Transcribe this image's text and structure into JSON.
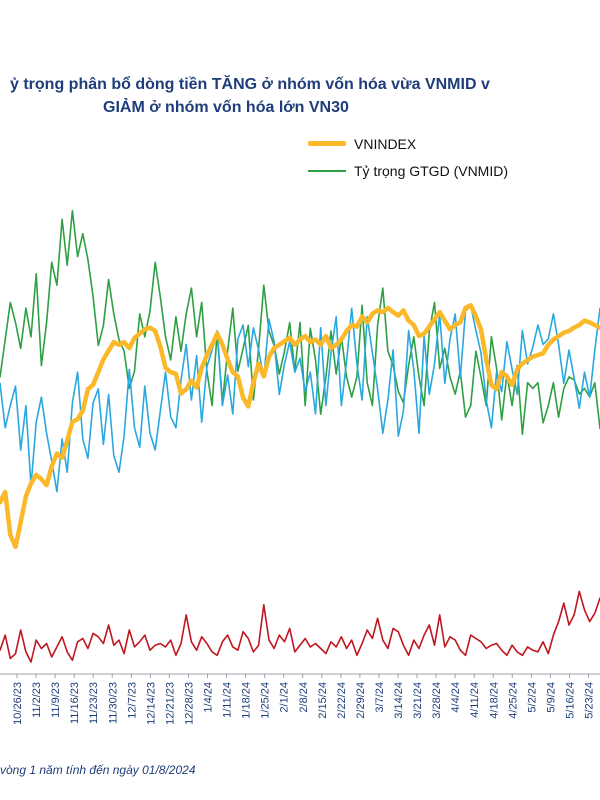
{
  "title": {
    "line1": "ỷ trọng phân bổ dòng tiền TĂNG ở nhóm vốn hóa vừa VNMID v",
    "line2": "GIẢM ở nhóm vốn hóa lớn VN30"
  },
  "legend": [
    {
      "name": "VNINDEX",
      "color": "#fbb829"
    },
    {
      "name": "Tỷ trọng GTGD (VNMID)",
      "color": "#2ea043"
    }
  ],
  "footnote": "vòng 1 năm tính đến ngày 01/8/2024",
  "chart_data": {
    "type": "line",
    "x_ticks": [
      "10/26/23",
      "11/2/23",
      "11/9/23",
      "11/16/23",
      "11/23/23",
      "11/30/23",
      "12/7/23",
      "12/14/23",
      "12/21/23",
      "12/28/23",
      "1/4/24",
      "1/11/24",
      "1/18/24",
      "1/25/24",
      "2/1/24",
      "2/8/24",
      "2/15/24",
      "2/22/24",
      "2/29/24",
      "3/7/24",
      "3/14/24",
      "3/21/24",
      "3/28/24",
      "4/4/24",
      "4/11/24",
      "4/18/24",
      "4/25/24",
      "5/2/24",
      "5/9/24",
      "5/16/24",
      "5/23/24"
    ],
    "series": [
      {
        "name": "VNINDEX",
        "color": "#fbb829",
        "values": [
          1078,
          1090,
          1040,
          1026,
          1055,
          1085,
          1100,
          1110,
          1105,
          1098,
          1120,
          1135,
          1130,
          1150,
          1172,
          1175,
          1185,
          1210,
          1215,
          1230,
          1245,
          1255,
          1265,
          1262,
          1265,
          1258,
          1270,
          1275,
          1280,
          1282,
          1278,
          1260,
          1235,
          1230,
          1228,
          1205,
          1210,
          1220,
          1212,
          1235,
          1250,
          1262,
          1275,
          1262,
          1245,
          1230,
          1225,
          1200,
          1190,
          1218,
          1240,
          1225,
          1248,
          1258,
          1262,
          1266,
          1270,
          1262,
          1268,
          1272,
          1265,
          1268,
          1262,
          1272,
          1258,
          1262,
          1268,
          1278,
          1285,
          1283,
          1295,
          1288,
          1298,
          1302,
          1300,
          1305,
          1300,
          1296,
          1302,
          1290,
          1285,
          1272,
          1275,
          1283,
          1292,
          1300,
          1290,
          1280,
          1285,
          1288,
          1305,
          1308,
          1295,
          1280,
          1245,
          1215,
          1210,
          1230,
          1225,
          1215,
          1233,
          1240,
          1244,
          1248,
          1250,
          1252,
          1262,
          1268,
          1272,
          1276,
          1278,
          1282,
          1285,
          1290,
          1288,
          1285,
          1282
        ]
      },
      {
        "name": "Tỷ trọng GTGD (VNMID)",
        "color": "#2ea043",
        "values": [
          16.2,
          17.5,
          18.8,
          18.1,
          17.2,
          18.6,
          17.6,
          19.8,
          16.6,
          18.1,
          20.2,
          19.4,
          21.7,
          20.1,
          22.0,
          20.4,
          21.2,
          20.3,
          19.0,
          17.3,
          18.0,
          19.6,
          18.4,
          17.5,
          17.1,
          15.8,
          16.4,
          18.4,
          17.6,
          18.5,
          20.2,
          19.0,
          17.6,
          16.8,
          18.3,
          17.1,
          18.4,
          19.3,
          17.6,
          18.8,
          16.4,
          15.2,
          17.8,
          15.3,
          17.1,
          18.6,
          16.4,
          17.2,
          18.0,
          15.4,
          17.2,
          19.4,
          17.8,
          17.3,
          16.3,
          17.1,
          18.1,
          16.4,
          18.1,
          15.2,
          17.9,
          16.8,
          14.9,
          16.2,
          17.8,
          16.3,
          17.6,
          16.2,
          15.5,
          16.2,
          18.7,
          16.0,
          15.2,
          18.0,
          19.3,
          17.1,
          16.6,
          15.7,
          15.3,
          16.6,
          17.6,
          16.2,
          15.2,
          17.8,
          18.8,
          16.5,
          17.2,
          16.2,
          15.6,
          16.4,
          14.8,
          15.2,
          17.1,
          16.2,
          15.2,
          17.6,
          16.5,
          14.7,
          16.3,
          15.2,
          16.6,
          14.2,
          16.0,
          15.8,
          16.0,
          14.6,
          15.2,
          16.0,
          14.8,
          15.8,
          16.2,
          16.1,
          15.6,
          15.8,
          15.5,
          16.0,
          14.4
        ]
      },
      {
        "color": "#29a8e0",
        "values": [
          14.2,
          12.6,
          13.4,
          14.1,
          11.8,
          13.4,
          10.5,
          12.8,
          13.7,
          12.4,
          11.4,
          10.3,
          12.2,
          11.0,
          13.5,
          14.6,
          12.2,
          11.5,
          13.5,
          14.0,
          12.0,
          13.8,
          11.6,
          11.0,
          12.3,
          14.7,
          12.6,
          11.9,
          14.1,
          12.4,
          11.8,
          13.2,
          14.6,
          13.0,
          12.6,
          14.3,
          15.6,
          13.6,
          15.2,
          12.8,
          14.8,
          15.4,
          16.0,
          13.4,
          14.5,
          13.1,
          15.8,
          16.3,
          14.8,
          16.2,
          15.4,
          14.4,
          16.5,
          15.7,
          13.8,
          14.9,
          15.7,
          14.6,
          15.1,
          13.9,
          14.6,
          13.1,
          16.2,
          13.4,
          15.3,
          16.6,
          13.4,
          15.0,
          16.9,
          14.9,
          13.6,
          16.6,
          15.3,
          14.0,
          12.4,
          13.6,
          15.4,
          12.3,
          13.2,
          16.1,
          14.7,
          12.4,
          15.9,
          13.8,
          14.9,
          16.7,
          14.2,
          15.8,
          16.7,
          14.4,
          16.8,
          17.0,
          16.1,
          15.3,
          13.6,
          12.6,
          14.6,
          13.9,
          15.7,
          14.7,
          13.8,
          16.1,
          14.9,
          15.5,
          16.3,
          15.6,
          15.8,
          16.7,
          15.6,
          14.2,
          15.4,
          14.4,
          13.3,
          14.6,
          13.7,
          15.4,
          16.9
        ]
      },
      {
        "color": "#c0161f",
        "values": [
          2.7,
          3.6,
          2.2,
          2.5,
          3.9,
          2.6,
          2.0,
          3.3,
          2.8,
          3.1,
          2.3,
          2.9,
          3.5,
          2.6,
          2.1,
          3.2,
          3.4,
          2.8,
          3.7,
          3.5,
          3.1,
          4.2,
          3.0,
          3.3,
          2.5,
          3.9,
          2.9,
          3.2,
          3.6,
          2.7,
          3.0,
          3.1,
          2.9,
          3.3,
          2.4,
          3.1,
          4.8,
          3.2,
          2.7,
          3.5,
          3.1,
          2.6,
          2.4,
          3.2,
          3.6,
          2.9,
          2.7,
          3.8,
          3.4,
          2.6,
          3.0,
          5.4,
          3.3,
          2.8,
          3.6,
          3.2,
          4.0,
          2.6,
          3.0,
          3.4,
          2.9,
          3.1,
          2.8,
          2.5,
          3.2,
          2.9,
          3.5,
          2.8,
          3.3,
          2.4,
          3.1,
          3.9,
          3.4,
          4.6,
          3.3,
          2.8,
          4.0,
          3.8,
          3.0,
          2.4,
          3.3,
          2.8,
          3.6,
          4.2,
          3.0,
          4.8,
          2.9,
          3.5,
          3.3,
          2.7,
          2.4,
          3.6,
          3.4,
          3.2,
          2.8,
          3.0,
          3.1,
          2.7,
          2.4,
          3.0,
          2.6,
          2.4,
          2.9,
          2.7,
          2.6,
          3.2,
          2.5,
          3.6,
          4.4,
          5.5,
          4.2,
          4.8,
          6.2,
          5.1,
          4.4,
          4.9,
          5.8
        ]
      }
    ]
  }
}
